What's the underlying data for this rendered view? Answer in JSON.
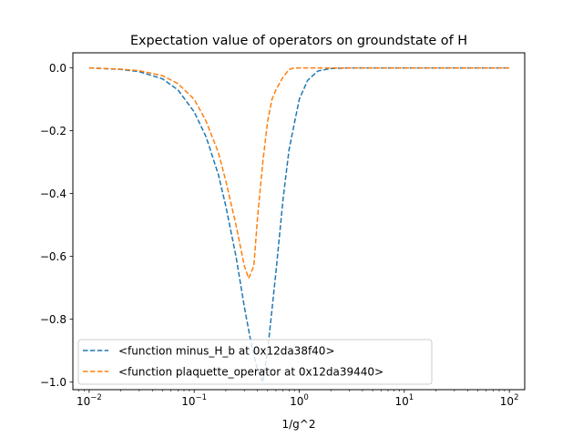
{
  "chart_data": {
    "type": "line",
    "title": "Expectation value of operators on groundstate of H",
    "xlabel": "1/g^2",
    "ylabel": "",
    "xscale": "log",
    "xlim": [
      0.007,
      140
    ],
    "ylim": [
      -1.024,
      0.048
    ],
    "x_ticks": [
      {
        "value": 0.01,
        "base": "10",
        "exp": "−2"
      },
      {
        "value": 0.1,
        "base": "10",
        "exp": "−1"
      },
      {
        "value": 1,
        "base": "10",
        "exp": "0"
      },
      {
        "value": 10,
        "base": "10",
        "exp": "1"
      },
      {
        "value": 100,
        "base": "10",
        "exp": "2"
      }
    ],
    "y_ticks": [
      {
        "value": 0.0,
        "label": "0.0"
      },
      {
        "value": -0.2,
        "label": "−0.2"
      },
      {
        "value": -0.4,
        "label": "−0.4"
      },
      {
        "value": -0.6,
        "label": "−0.6"
      },
      {
        "value": -0.8,
        "label": "−0.8"
      },
      {
        "value": -1.0,
        "label": "−1.0"
      }
    ],
    "legend_position": "lower-left",
    "series": [
      {
        "name": "<function minus_H_b at 0x12da38f40>",
        "color": "#1f77b4",
        "style": "dashed",
        "x": [
          0.01,
          0.02,
          0.03,
          0.05,
          0.07,
          0.1,
          0.13,
          0.17,
          0.2,
          0.25,
          0.3,
          0.35,
          0.4,
          0.45,
          0.5,
          0.6,
          0.7,
          0.8,
          1.0,
          1.2,
          1.5,
          2,
          3,
          5,
          10,
          100
        ],
        "y": [
          0.0,
          -0.005,
          -0.012,
          -0.035,
          -0.07,
          -0.14,
          -0.22,
          -0.34,
          -0.44,
          -0.6,
          -0.76,
          -0.88,
          -0.96,
          -1.0,
          -0.9,
          -0.65,
          -0.42,
          -0.26,
          -0.1,
          -0.04,
          -0.01,
          -0.002,
          0.0,
          0.0,
          0.0,
          0.0
        ]
      },
      {
        "name": "<function plaquette_operator at 0x12da39440>",
        "color": "#ff7f0e",
        "style": "dashed",
        "x": [
          0.01,
          0.02,
          0.03,
          0.05,
          0.07,
          0.1,
          0.13,
          0.17,
          0.2,
          0.25,
          0.3,
          0.33,
          0.37,
          0.4,
          0.45,
          0.5,
          0.55,
          0.6,
          0.7,
          0.8,
          0.9,
          1.0,
          2,
          10,
          100
        ],
        "y": [
          0.0,
          -0.004,
          -0.009,
          -0.025,
          -0.05,
          -0.1,
          -0.17,
          -0.27,
          -0.36,
          -0.5,
          -0.63,
          -0.67,
          -0.63,
          -0.48,
          -0.3,
          -0.17,
          -0.1,
          -0.07,
          -0.03,
          -0.005,
          0.0,
          0.0,
          0.0,
          0.0,
          0.0
        ]
      }
    ]
  }
}
